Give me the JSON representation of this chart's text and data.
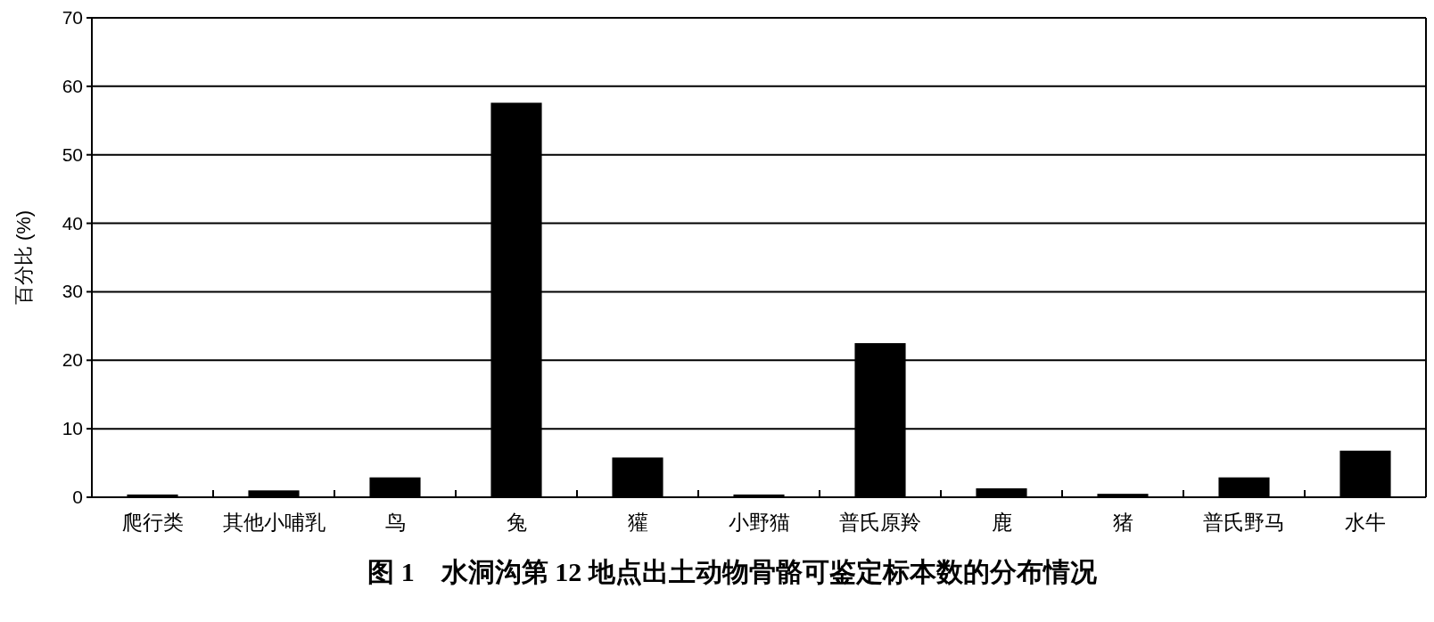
{
  "chart_data": {
    "type": "bar",
    "title": "图 1　水洞沟第 12 地点出土动物骨骼可鉴定标本数的分布情况",
    "ylabel": "百分比 (%)",
    "categories": [
      "爬行类",
      "其他小哺乳",
      "鸟",
      "兔",
      "獾",
      "小野猫",
      "普氏原羚",
      "鹿",
      "猪",
      "普氏野马",
      "水牛"
    ],
    "values": [
      0.4,
      1.0,
      2.9,
      57.6,
      5.8,
      0.4,
      22.5,
      1.3,
      0.5,
      2.9,
      6.8
    ],
    "color": "#000000",
    "ylim": [
      0,
      70
    ],
    "yticks": [
      0,
      10,
      20,
      30,
      40,
      50,
      60,
      70
    ],
    "grid": "y"
  }
}
